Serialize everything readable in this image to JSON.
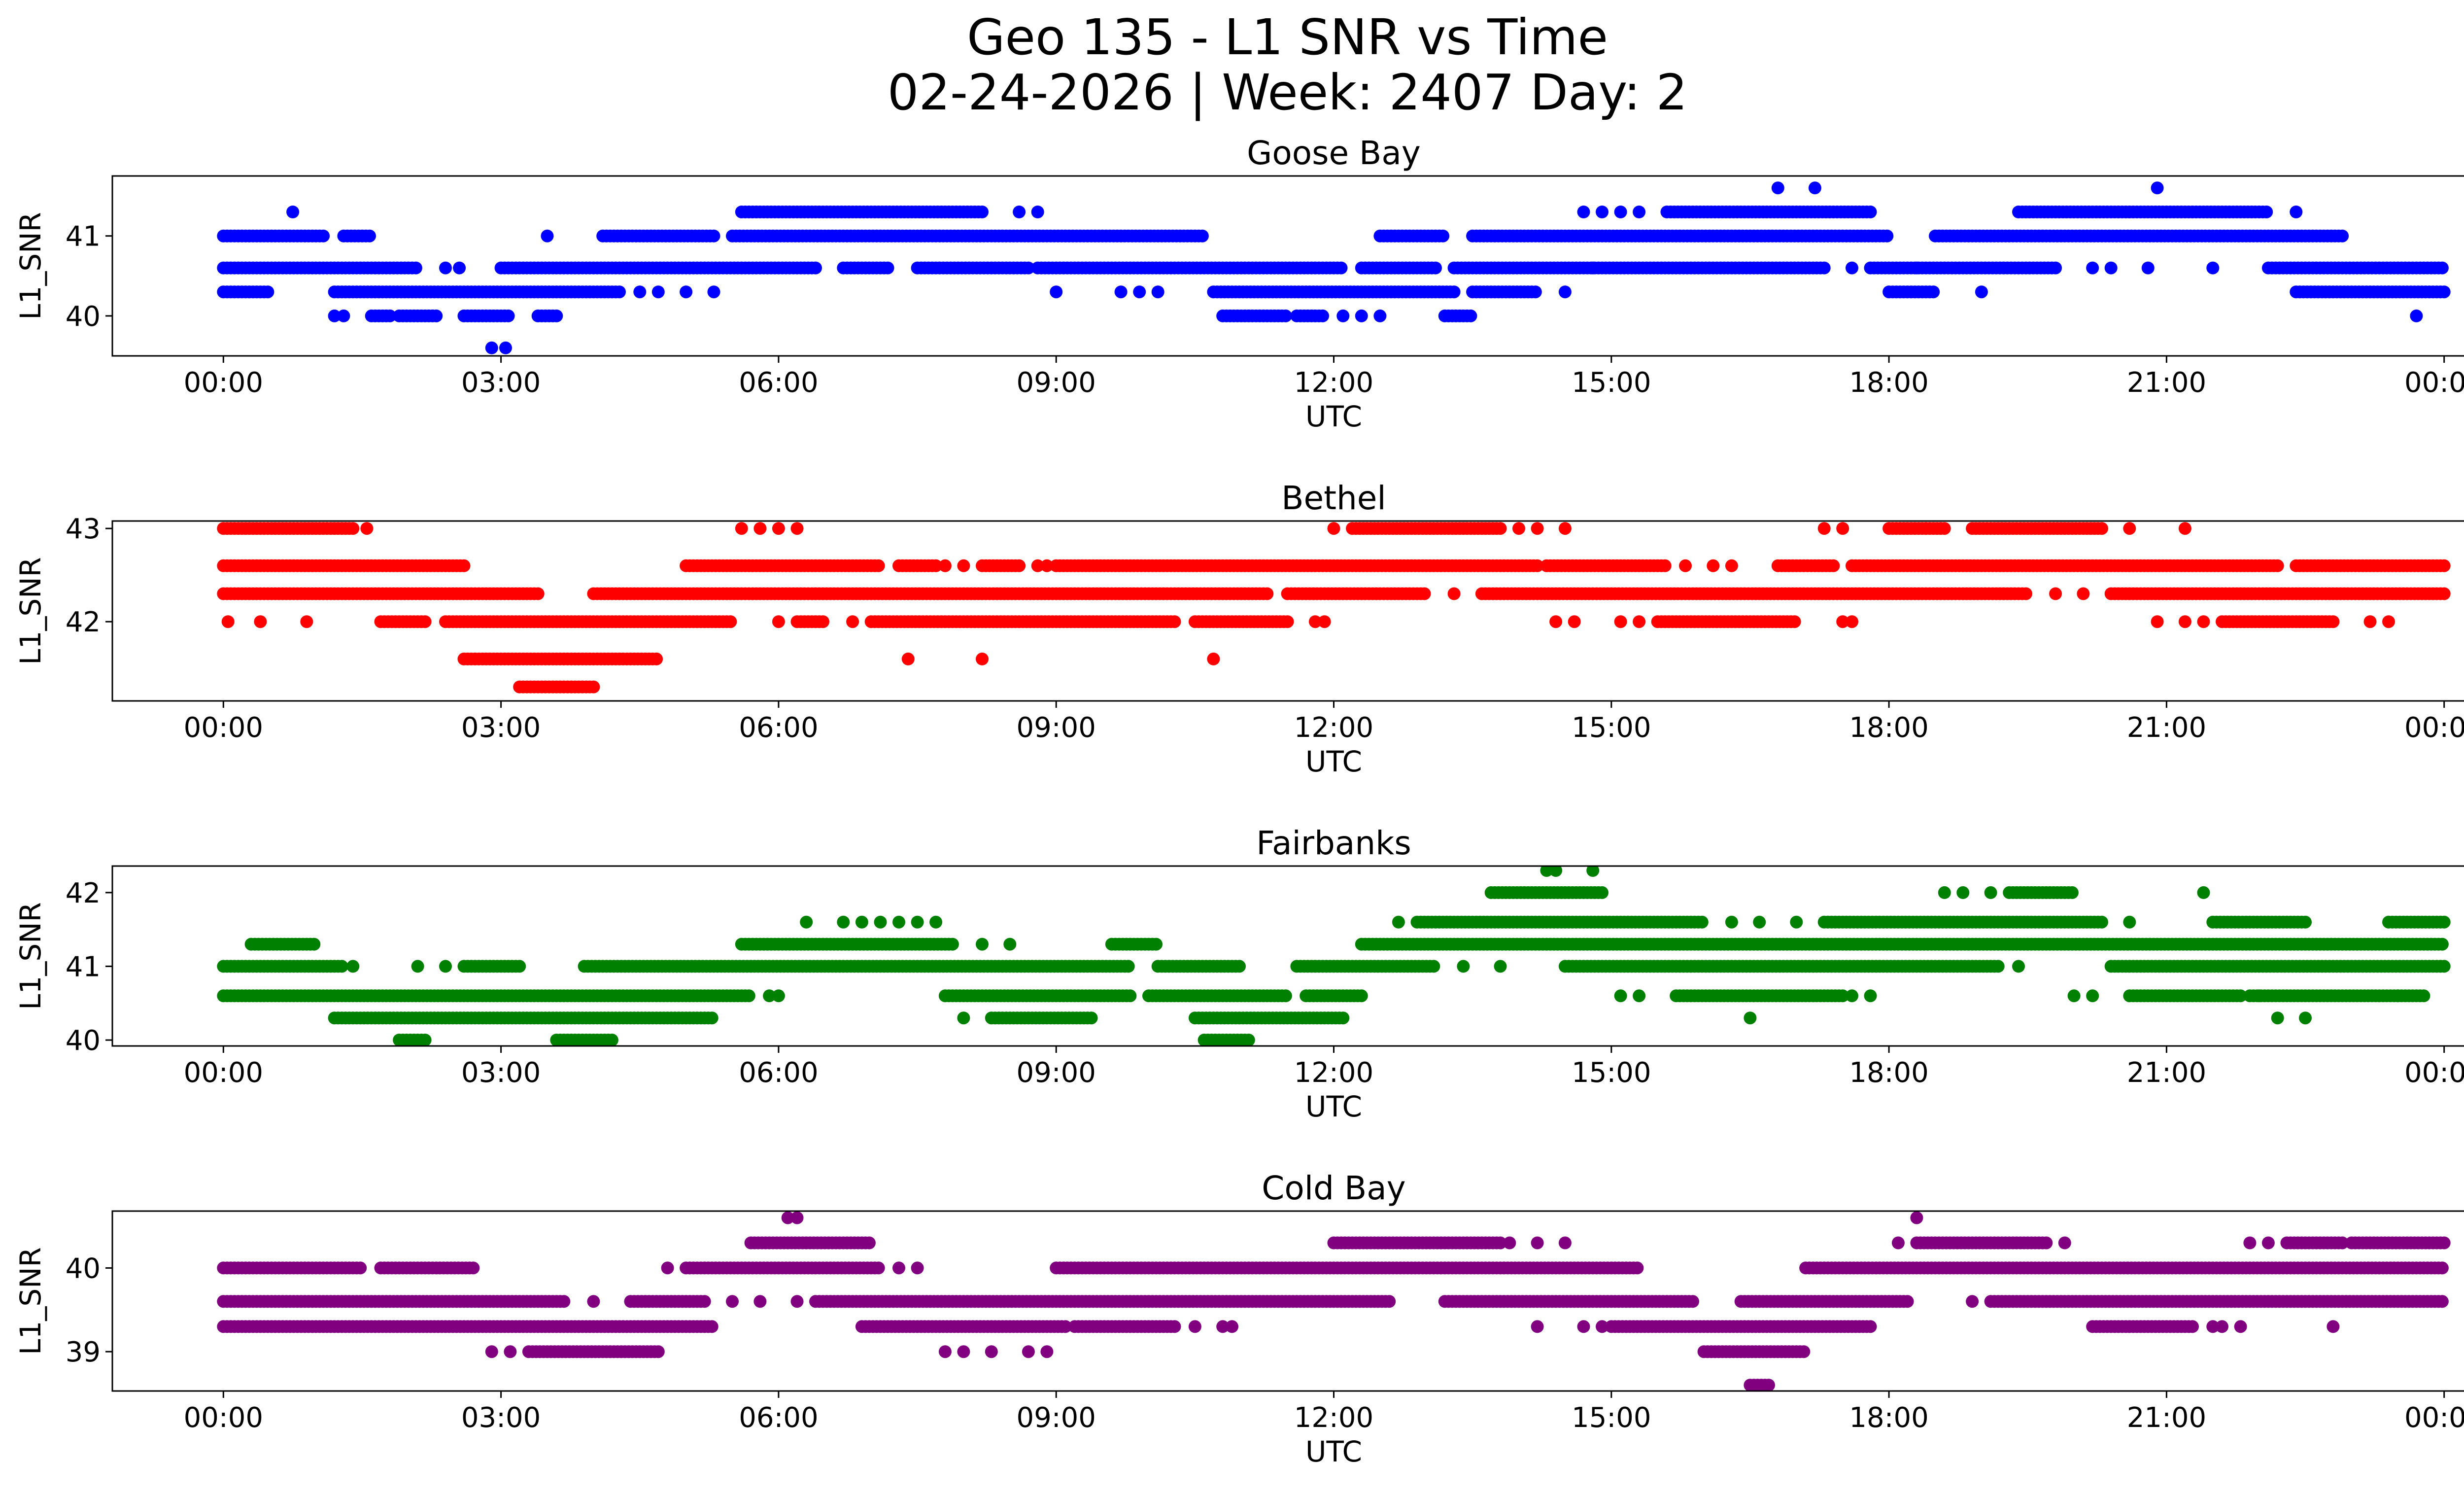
{
  "figure": {
    "title_line1": "Geo 135 - L1 SNR vs Time",
    "title_line2": "02-24-2026 | Week: 2407 Day: 2"
  },
  "chart_data": [
    {
      "type": "scatter",
      "title": "Goose Bay",
      "xlabel": "UTC",
      "ylabel": "L1_SNR",
      "color": "#0000ff",
      "xlim": [
        -1.2,
        25.2
      ],
      "ylim": [
        39.5,
        41.75
      ],
      "xticks": [
        0,
        3,
        6,
        9,
        12,
        15,
        18,
        21,
        24
      ],
      "xtick_labels": [
        "00:00",
        "03:00",
        "06:00",
        "09:00",
        "12:00",
        "15:00",
        "18:00",
        "21:00",
        "00:00"
      ],
      "yticks": [
        40,
        41
      ],
      "ytick_labels": [
        "40",
        "41"
      ],
      "segments": [
        {
          "y": 41.3,
          "ranges": [
            [
              5.6,
              8.2
            ],
            [
              15.6,
              17.8
            ],
            [
              19.4,
              22.1
            ]
          ],
          "dots": [
            0.75,
            8.6,
            8.8,
            14.7,
            14.9,
            15.1,
            15.3,
            22.4
          ]
        },
        {
          "y": 41.0,
          "ranges": [
            [
              0.0,
              1.1
            ],
            [
              1.3,
              1.6
            ],
            [
              4.1,
              5.3
            ],
            [
              5.5,
              10.6
            ],
            [
              12.5,
              13.2
            ],
            [
              13.5,
              18.0
            ],
            [
              18.5,
              22.9
            ]
          ],
          "dots": [
            3.5
          ]
        },
        {
          "y": 40.6,
          "ranges": [
            [
              0.0,
              2.1
            ],
            [
              3.0,
              6.4
            ],
            [
              6.7,
              7.2
            ],
            [
              7.5,
              8.7
            ],
            [
              8.8,
              12.1
            ],
            [
              12.3,
              13.1
            ],
            [
              13.3,
              17.3
            ],
            [
              17.8,
              19.8
            ],
            [
              22.1,
              24.0
            ]
          ],
          "dots": [
            2.4,
            2.55,
            14.8,
            17.6,
            18.3,
            20.2,
            20.4,
            20.8,
            21.5
          ]
        },
        {
          "y": 40.3,
          "ranges": [
            [
              0.0,
              0.5
            ],
            [
              1.2,
              4.3
            ],
            [
              10.7,
              13.3
            ],
            [
              13.5,
              14.2
            ],
            [
              18.0,
              18.5
            ],
            [
              22.4,
              24.0
            ]
          ],
          "dots": [
            4.5,
            4.7,
            5.0,
            5.3,
            9.0,
            9.7,
            9.9,
            10.1,
            14.5,
            19.0
          ]
        },
        {
          "y": 40.0,
          "ranges": [
            [
              1.6,
              1.8
            ],
            [
              1.9,
              2.3
            ],
            [
              2.6,
              3.1
            ],
            [
              3.4,
              3.6
            ],
            [
              10.8,
              11.5
            ],
            [
              11.6,
              11.9
            ],
            [
              13.2,
              13.5
            ]
          ],
          "dots": [
            1.2,
            1.3,
            12.1,
            12.3,
            12.5,
            23.7
          ]
        },
        {
          "y": 39.6,
          "ranges": [],
          "dots": [
            2.9,
            3.05
          ]
        },
        {
          "y": 41.6,
          "ranges": [],
          "dots": [
            16.8,
            17.2,
            20.9
          ]
        }
      ]
    },
    {
      "type": "scatter",
      "title": "Bethel",
      "xlabel": "UTC",
      "ylabel": "L1_SNR",
      "color": "#ff0000",
      "xlim": [
        -1.2,
        25.2
      ],
      "ylim": [
        41.15,
        43.08
      ],
      "xticks": [
        0,
        3,
        6,
        9,
        12,
        15,
        18,
        21,
        24
      ],
      "xtick_labels": [
        "00:00",
        "03:00",
        "06:00",
        "09:00",
        "12:00",
        "15:00",
        "18:00",
        "21:00",
        "00:00"
      ],
      "yticks": [
        42,
        43
      ],
      "ytick_labels": [
        "42",
        "43"
      ],
      "segments": [
        {
          "y": 43.0,
          "ranges": [
            [
              0.0,
              1.4
            ],
            [
              12.2,
              13.8
            ],
            [
              18.0,
              18.6
            ],
            [
              18.9,
              20.3
            ]
          ],
          "dots": [
            1.55,
            5.6,
            5.8,
            6.0,
            6.2,
            12.0,
            14.0,
            14.2,
            14.5,
            17.3,
            17.5,
            18.4,
            20.6,
            21.2
          ]
        },
        {
          "y": 42.6,
          "ranges": [
            [
              0.0,
              2.6
            ],
            [
              5.0,
              7.1
            ],
            [
              7.3,
              7.7
            ],
            [
              8.2,
              8.6
            ],
            [
              9.0,
              14.2
            ],
            [
              14.3,
              15.6
            ],
            [
              16.8,
              17.4
            ],
            [
              17.6,
              22.2
            ],
            [
              22.4,
              24.0
            ]
          ],
          "dots": [
            7.8,
            8.0,
            8.8,
            8.9,
            15.8,
            16.1,
            16.3
          ]
        },
        {
          "y": 42.3,
          "ranges": [
            [
              0.0,
              3.4
            ],
            [
              4.0,
              11.3
            ],
            [
              11.5,
              13.0
            ],
            [
              13.6,
              19.5
            ],
            [
              20.4,
              24.0
            ]
          ],
          "dots": [
            13.3,
            19.8,
            20.1
          ]
        },
        {
          "y": 42.0,
          "ranges": [
            [
              1.7,
              2.2
            ],
            [
              2.4,
              5.5
            ],
            [
              6.2,
              6.5
            ],
            [
              7.0,
              10.3
            ],
            [
              10.5,
              11.5
            ],
            [
              15.5,
              17.0
            ],
            [
              21.6,
              22.8
            ]
          ],
          "dots": [
            0.05,
            0.4,
            0.9,
            6.0,
            6.8,
            11.8,
            11.9,
            14.4,
            14.6,
            15.1,
            15.3,
            17.5,
            17.6,
            20.9,
            21.2,
            21.4,
            23.2,
            23.4
          ]
        },
        {
          "y": 41.6,
          "ranges": [
            [
              2.6,
              4.7
            ]
          ],
          "dots": [
            7.4,
            8.2,
            10.7
          ]
        },
        {
          "y": 41.3,
          "ranges": [
            [
              3.2,
              4.0
            ]
          ],
          "dots": []
        }
      ]
    },
    {
      "type": "scatter",
      "title": "Fairbanks",
      "xlabel": "UTC",
      "ylabel": "L1_SNR",
      "color": "#008000",
      "xlim": [
        -1.2,
        25.2
      ],
      "ylim": [
        39.92,
        42.36
      ],
      "xticks": [
        0,
        3,
        6,
        9,
        12,
        15,
        18,
        21,
        24
      ],
      "xtick_labels": [
        "00:00",
        "03:00",
        "06:00",
        "09:00",
        "12:00",
        "15:00",
        "18:00",
        "21:00",
        "00:00"
      ],
      "yticks": [
        40,
        41,
        42
      ],
      "ytick_labels": [
        "40",
        "41",
        "42"
      ],
      "segments": [
        {
          "y": 42.3,
          "ranges": [],
          "dots": [
            14.3,
            14.4,
            14.8
          ]
        },
        {
          "y": 42.0,
          "ranges": [
            [
              13.7,
              14.9
            ],
            [
              19.3,
              20.0
            ]
          ],
          "dots": [
            18.6,
            18.8,
            19.1,
            21.4
          ]
        },
        {
          "y": 41.6,
          "ranges": [
            [
              12.9,
              16.0
            ],
            [
              17.3,
              20.3
            ],
            [
              21.5,
              22.5
            ],
            [
              23.4,
              24.0
            ]
          ],
          "dots": [
            6.3,
            6.7,
            6.9,
            7.1,
            7.3,
            7.5,
            7.7,
            12.7,
            16.3,
            16.6,
            17.0,
            20.6
          ]
        },
        {
          "y": 41.3,
          "ranges": [
            [
              0.3,
              1.0
            ],
            [
              5.6,
              7.9
            ],
            [
              9.6,
              10.1
            ],
            [
              12.3,
              24.0
            ]
          ],
          "dots": [
            8.2,
            8.5
          ]
        },
        {
          "y": 41.0,
          "ranges": [
            [
              0.0,
              1.3
            ],
            [
              2.6,
              3.2
            ],
            [
              3.9,
              9.8
            ],
            [
              10.1,
              11.0
            ],
            [
              11.6,
              13.1
            ],
            [
              14.5,
              19.2
            ],
            [
              20.4,
              24.0
            ]
          ],
          "dots": [
            1.4,
            2.1,
            2.4,
            13.4,
            13.8,
            19.4
          ]
        },
        {
          "y": 40.6,
          "ranges": [
            [
              0.0,
              5.7
            ],
            [
              7.8,
              9.8
            ],
            [
              10.0,
              11.5
            ],
            [
              11.7,
              12.3
            ],
            [
              15.7,
              17.5
            ],
            [
              20.6,
              21.8
            ],
            [
              21.9,
              23.8
            ]
          ],
          "dots": [
            5.9,
            6.0,
            15.1,
            15.3,
            17.6,
            17.8,
            20.0,
            20.2,
            22.0,
            23.5
          ]
        },
        {
          "y": 40.3,
          "ranges": [
            [
              1.2,
              5.3
            ],
            [
              8.3,
              9.4
            ],
            [
              10.5,
              12.1
            ]
          ],
          "dots": [
            8.0,
            16.5,
            22.2,
            22.5
          ]
        },
        {
          "y": 40.0,
          "ranges": [
            [
              1.9,
              2.2
            ],
            [
              3.6,
              4.2
            ],
            [
              10.6,
              11.1
            ]
          ],
          "dots": []
        }
      ]
    },
    {
      "type": "scatter",
      "title": "Cold Bay",
      "xlabel": "UTC",
      "ylabel": "L1_SNR",
      "color": "#800080",
      "xlim": [
        -1.2,
        25.2
      ],
      "ylim": [
        38.53,
        40.68
      ],
      "xticks": [
        0,
        3,
        6,
        9,
        12,
        15,
        18,
        21,
        24
      ],
      "xtick_labels": [
        "00:00",
        "03:00",
        "06:00",
        "09:00",
        "12:00",
        "15:00",
        "18:00",
        "21:00",
        "00:00"
      ],
      "yticks": [
        39,
        40
      ],
      "ytick_labels": [
        "39",
        "40"
      ],
      "segments": [
        {
          "y": 40.6,
          "ranges": [],
          "dots": [
            6.1,
            6.2,
            18.3
          ]
        },
        {
          "y": 40.3,
          "ranges": [
            [
              5.7,
              7.0
            ],
            [
              12.0,
              13.8
            ],
            [
              18.3,
              19.7
            ],
            [
              22.3,
              22.9
            ],
            [
              23.0,
              24.0
            ]
          ],
          "dots": [
            13.9,
            14.2,
            14.5,
            21.9,
            22.1,
            19.9,
            18.1
          ]
        },
        {
          "y": 40.0,
          "ranges": [
            [
              0.0,
              1.5
            ],
            [
              1.7,
              2.7
            ],
            [
              5.0,
              7.1
            ],
            [
              9.0,
              15.3
            ],
            [
              17.1,
              24.0
            ]
          ],
          "dots": [
            7.3,
            7.5,
            4.8
          ]
        },
        {
          "y": 39.6,
          "ranges": [
            [
              0.0,
              3.7
            ],
            [
              4.4,
              5.2
            ],
            [
              6.4,
              12.6
            ],
            [
              13.2,
              15.9
            ],
            [
              16.4,
              18.2
            ],
            [
              19.1,
              24.0
            ]
          ],
          "dots": [
            4.0,
            5.5,
            5.8,
            6.2,
            18.9
          ]
        },
        {
          "y": 39.3,
          "ranges": [
            [
              0.0,
              5.3
            ],
            [
              6.9,
              9.1
            ],
            [
              9.2,
              10.3
            ],
            [
              15.0,
              17.8
            ],
            [
              20.2,
              21.3
            ]
          ],
          "dots": [
            10.5,
            10.8,
            10.9,
            14.2,
            14.7,
            14.9,
            21.5,
            21.6,
            21.8,
            22.8
          ]
        },
        {
          "y": 39.0,
          "ranges": [
            [
              3.3,
              4.7
            ],
            [
              16.0,
              17.1
            ]
          ],
          "dots": [
            2.9,
            3.1,
            7.8,
            8.0,
            8.3,
            8.7,
            8.9
          ]
        },
        {
          "y": 38.6,
          "ranges": [
            [
              16.5,
              16.7
            ]
          ],
          "dots": []
        }
      ]
    }
  ]
}
